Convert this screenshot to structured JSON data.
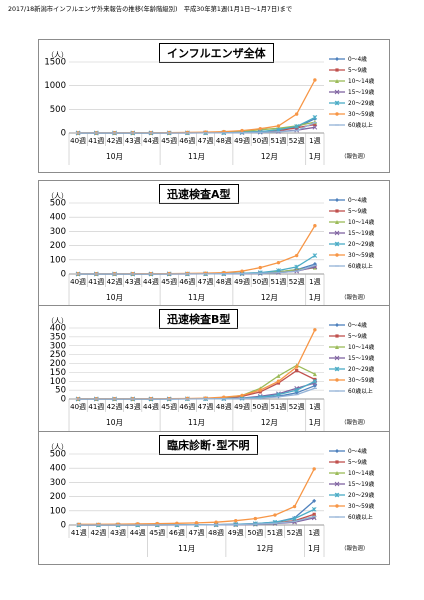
{
  "page_title": "2017/18新潟市インフルエンザ外来報告の推移(年齢階級別)　平成30年第1週(1月1日～1月7日)まで",
  "series_names": [
    "0～4歳",
    "5～9歳",
    "10～14歳",
    "15～19歳",
    "20～29歳",
    "30～59歳",
    "60歳以上"
  ],
  "series_colors": [
    "#4f81bd",
    "#c0504d",
    "#9bbb59",
    "#8064a2",
    "#4bacc6",
    "#f79646",
    "#95b3d7"
  ],
  "chart_data": [
    {
      "type": "line",
      "title": "インフルエンザ全体",
      "unit_label": "（人）",
      "report_label": "（報告週）",
      "ylim": [
        0,
        1500
      ],
      "yticks": [
        0,
        500,
        1000,
        1500
      ],
      "x": [
        "40週",
        "41週",
        "42週",
        "43週",
        "44週",
        "45週",
        "46週",
        "47週",
        "48週",
        "49週",
        "50週",
        "51週",
        "52週",
        "1週"
      ],
      "months": [
        {
          "label": "10月",
          "from": 0,
          "to": 4
        },
        {
          "label": "11月",
          "from": 5,
          "to": 8
        },
        {
          "label": "12月",
          "from": 9,
          "to": 12
        },
        {
          "label": "1月",
          "from": 13,
          "to": 13
        }
      ],
      "series": [
        {
          "name": "0～4歳",
          "values": [
            0,
            0,
            0,
            0,
            1,
            2,
            3,
            5,
            8,
            15,
            30,
            60,
            120,
            300
          ]
        },
        {
          "name": "5～9歳",
          "values": [
            0,
            0,
            0,
            0,
            1,
            1,
            2,
            3,
            6,
            12,
            25,
            50,
            110,
            180
          ]
        },
        {
          "name": "10～14歳",
          "values": [
            0,
            0,
            0,
            0,
            0,
            1,
            2,
            4,
            10,
            30,
            70,
            100,
            150,
            230
          ]
        },
        {
          "name": "15～19歳",
          "values": [
            0,
            0,
            0,
            0,
            0,
            1,
            1,
            2,
            4,
            8,
            15,
            30,
            60,
            120
          ]
        },
        {
          "name": "20～29歳",
          "values": [
            0,
            0,
            0,
            0,
            1,
            2,
            3,
            4,
            8,
            15,
            30,
            70,
            140,
            330
          ]
        },
        {
          "name": "30～59歳",
          "values": [
            2,
            2,
            3,
            4,
            5,
            8,
            12,
            20,
            30,
            50,
            90,
            150,
            400,
            1120
          ]
        },
        {
          "name": "60歳以上",
          "values": [
            0,
            0,
            0,
            0,
            0,
            1,
            1,
            2,
            3,
            6,
            12,
            25,
            50,
            220
          ]
        }
      ]
    },
    {
      "type": "line",
      "title": "迅速検査A型",
      "unit_label": "（人）",
      "report_label": "（報告週）",
      "ylim": [
        0,
        500
      ],
      "yticks": [
        0,
        100,
        200,
        300,
        400,
        500
      ],
      "x": [
        "40週",
        "41週",
        "42週",
        "43週",
        "44週",
        "45週",
        "46週",
        "47週",
        "48週",
        "49週",
        "50週",
        "51週",
        "52週",
        "1週"
      ],
      "months": [
        {
          "label": "10月",
          "from": 0,
          "to": 4
        },
        {
          "label": "11月",
          "from": 5,
          "to": 8
        },
        {
          "label": "12月",
          "from": 9,
          "to": 12
        },
        {
          "label": "1月",
          "from": 13,
          "to": 13
        }
      ],
      "series": [
        {
          "name": "0～4歳",
          "values": [
            0,
            0,
            0,
            0,
            0,
            1,
            1,
            2,
            3,
            5,
            8,
            15,
            30,
            70
          ]
        },
        {
          "name": "5～9歳",
          "values": [
            0,
            0,
            0,
            0,
            0,
            0,
            1,
            1,
            2,
            4,
            6,
            12,
            25,
            45
          ]
        },
        {
          "name": "10～14歳",
          "values": [
            0,
            0,
            0,
            0,
            0,
            0,
            1,
            1,
            2,
            4,
            8,
            15,
            30,
            45
          ]
        },
        {
          "name": "15～19歳",
          "values": [
            0,
            0,
            0,
            0,
            0,
            0,
            0,
            1,
            1,
            2,
            4,
            10,
            20,
            50
          ]
        },
        {
          "name": "20～29歳",
          "values": [
            0,
            0,
            0,
            0,
            0,
            1,
            1,
            2,
            3,
            5,
            10,
            25,
            50,
            130
          ]
        },
        {
          "name": "30～59歳",
          "values": [
            1,
            1,
            1,
            2,
            2,
            3,
            4,
            6,
            10,
            20,
            45,
            80,
            130,
            340
          ]
        },
        {
          "name": "60歳以上",
          "values": [
            0,
            0,
            0,
            0,
            0,
            0,
            1,
            1,
            2,
            3,
            5,
            10,
            20,
            60
          ]
        }
      ]
    },
    {
      "type": "line",
      "title": "迅速検査B型",
      "unit_label": "（人）",
      "report_label": "（報告週）",
      "ylim": [
        0,
        400
      ],
      "yticks": [
        0,
        50,
        100,
        150,
        200,
        250,
        300,
        350,
        400
      ],
      "x": [
        "40週",
        "41週",
        "42週",
        "43週",
        "44週",
        "45週",
        "46週",
        "47週",
        "48週",
        "49週",
        "50週",
        "51週",
        "52週",
        "1週"
      ],
      "months": [
        {
          "label": "10月",
          "from": 0,
          "to": 4
        },
        {
          "label": "11月",
          "from": 5,
          "to": 8
        },
        {
          "label": "12月",
          "from": 9,
          "to": 12
        },
        {
          "label": "1月",
          "from": 13,
          "to": 13
        }
      ],
      "series": [
        {
          "name": "0～4歳",
          "values": [
            0,
            0,
            0,
            0,
            0,
            0,
            1,
            1,
            2,
            4,
            8,
            15,
            35,
            75
          ]
        },
        {
          "name": "5～9歳",
          "values": [
            0,
            0,
            0,
            0,
            0,
            1,
            1,
            2,
            5,
            15,
            40,
            90,
            160,
            110
          ]
        },
        {
          "name": "10～14歳",
          "values": [
            0,
            0,
            0,
            0,
            0,
            1,
            2,
            3,
            8,
            20,
            60,
            130,
            190,
            140
          ]
        },
        {
          "name": "15～19歳",
          "values": [
            0,
            0,
            0,
            0,
            0,
            0,
            1,
            1,
            2,
            5,
            15,
            30,
            60,
            90
          ]
        },
        {
          "name": "20～29歳",
          "values": [
            0,
            0,
            0,
            0,
            0,
            0,
            1,
            1,
            2,
            4,
            10,
            25,
            50,
            100
          ]
        },
        {
          "name": "30～59歳",
          "values": [
            1,
            1,
            1,
            1,
            2,
            2,
            3,
            5,
            10,
            20,
            50,
            100,
            180,
            390
          ]
        },
        {
          "name": "60歳以上",
          "values": [
            0,
            0,
            0,
            0,
            0,
            0,
            0,
            1,
            1,
            2,
            5,
            12,
            25,
            60
          ]
        }
      ]
    },
    {
      "type": "line",
      "title": "臨床診断･型不明",
      "unit_label": "（人）",
      "report_label": "（報告週）",
      "ylim": [
        0,
        500
      ],
      "yticks": [
        0,
        100,
        200,
        300,
        400,
        500
      ],
      "x": [
        "41週",
        "42週",
        "43週",
        "44週",
        "45週",
        "46週",
        "47週",
        "48週",
        "49週",
        "50週",
        "51週",
        "52週",
        "1週"
      ],
      "months": [
        {
          "label": "11月",
          "from": 4,
          "to": 7
        },
        {
          "label": "12月",
          "from": 8,
          "to": 11
        },
        {
          "label": "1月",
          "from": 12,
          "to": 12
        }
      ],
      "series": [
        {
          "name": "0～4歳",
          "values": [
            0,
            0,
            0,
            0,
            1,
            1,
            2,
            3,
            5,
            10,
            20,
            50,
            170
          ]
        },
        {
          "name": "5～9歳",
          "values": [
            0,
            0,
            0,
            0,
            0,
            1,
            1,
            2,
            4,
            8,
            15,
            30,
            75
          ]
        },
        {
          "name": "10～14歳",
          "values": [
            0,
            0,
            0,
            0,
            0,
            1,
            1,
            2,
            3,
            6,
            12,
            25,
            60
          ]
        },
        {
          "name": "15～19歳",
          "values": [
            0,
            0,
            0,
            0,
            0,
            0,
            1,
            1,
            2,
            5,
            10,
            20,
            50
          ]
        },
        {
          "name": "20～29歳",
          "values": [
            0,
            0,
            0,
            0,
            1,
            1,
            2,
            3,
            5,
            10,
            20,
            45,
            110
          ]
        },
        {
          "name": "30～59歳",
          "values": [
            5,
            5,
            6,
            8,
            10,
            12,
            15,
            20,
            30,
            45,
            70,
            130,
            395
          ]
        },
        {
          "name": "60歳以上",
          "values": [
            0,
            0,
            0,
            0,
            0,
            1,
            1,
            2,
            3,
            6,
            12,
            25,
            60
          ]
        }
      ]
    }
  ]
}
